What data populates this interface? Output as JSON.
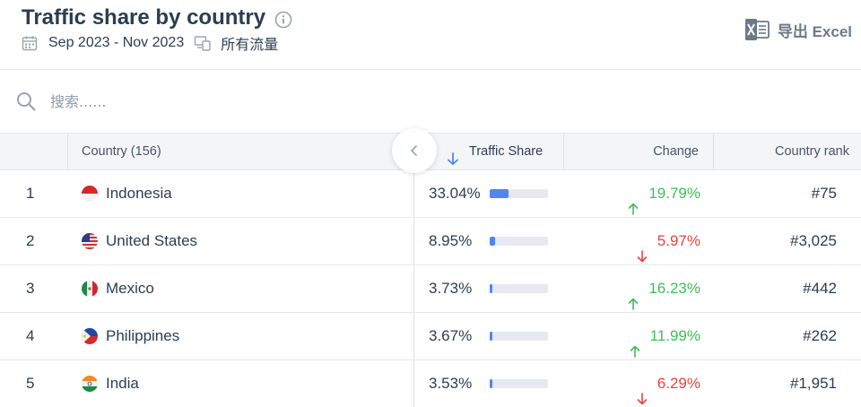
{
  "header": {
    "title": "Traffic share by country",
    "date_range": "Sep 2023 - Nov 2023",
    "traffic_type": "所有流量",
    "export_label": "导出 Excel"
  },
  "search": {
    "placeholder": "搜索......"
  },
  "table": {
    "columns": {
      "country": "Country (156)",
      "share": "Traffic Share",
      "change": "Change",
      "rank": "Country rank"
    },
    "rows": [
      {
        "rank": "1",
        "country": "Indonesia",
        "flag": "flag-indonesia",
        "share": "33.04%",
        "share_value": 33.04,
        "change": "19.79%",
        "direction": "up",
        "country_rank": "#75"
      },
      {
        "rank": "2",
        "country": "United States",
        "flag": "flag-united-states",
        "share": "8.95%",
        "share_value": 8.95,
        "change": "5.97%",
        "direction": "down",
        "country_rank": "#3,025"
      },
      {
        "rank": "3",
        "country": "Mexico",
        "flag": "flag-mexico",
        "share": "3.73%",
        "share_value": 3.73,
        "change": "16.23%",
        "direction": "up",
        "country_rank": "#442"
      },
      {
        "rank": "4",
        "country": "Philippines",
        "flag": "flag-philippines",
        "share": "3.67%",
        "share_value": 3.67,
        "change": "11.99%",
        "direction": "up",
        "country_rank": "#262"
      },
      {
        "rank": "5",
        "country": "India",
        "flag": "flag-india",
        "share": "3.53%",
        "share_value": 3.53,
        "change": "6.29%",
        "direction": "down",
        "country_rank": "#1,951"
      }
    ]
  },
  "colors": {
    "bar": "#4f86f0",
    "up": "#3cc057",
    "down": "#e8443d"
  }
}
